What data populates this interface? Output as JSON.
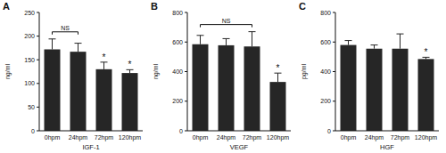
{
  "chart_data": [
    {
      "type": "bar",
      "title": "A",
      "x_label": "IGF-1",
      "y_label": "ng/ml",
      "categories": [
        "0hpm",
        "24hpm",
        "72hpm",
        "120hpm"
      ],
      "values": [
        172,
        167,
        130,
        122
      ],
      "errors": [
        22,
        18,
        15,
        7
      ],
      "color": "#262626",
      "ylim": [
        0,
        250
      ],
      "yticks": [
        0,
        50,
        100,
        150,
        200,
        250
      ],
      "grid": false,
      "annotations": [
        {
          "text": "NS",
          "from": 0,
          "to": 1
        },
        {
          "text": "*",
          "from": 2,
          "to": 2
        },
        {
          "text": "*",
          "from": 3,
          "to": 3
        }
      ]
    },
    {
      "type": "bar",
      "title": "B",
      "x_label": "VEGF",
      "y_label": "ng/ml",
      "categories": [
        "0hpm",
        "24hpm",
        "72hpm",
        "120hpm"
      ],
      "values": [
        585,
        578,
        570,
        330
      ],
      "errors": [
        60,
        45,
        100,
        60
      ],
      "color": "#262626",
      "ylim": [
        0,
        800
      ],
      "yticks": [
        0,
        200,
        400,
        600,
        800
      ],
      "grid": false,
      "annotations": [
        {
          "text": "NS",
          "from": 0,
          "to": 2
        },
        {
          "text": "*",
          "from": 3,
          "to": 3
        }
      ]
    },
    {
      "type": "bar",
      "title": "C",
      "x_label": "HGF",
      "y_label": "pg/ml",
      "categories": [
        "0hpm",
        "24hpm",
        "72hpm",
        "120hpm"
      ],
      "values": [
        580,
        555,
        555,
        485
      ],
      "errors": [
        30,
        25,
        100,
        12
      ],
      "color": "#262626",
      "ylim": [
        0,
        800
      ],
      "yticks": [
        0,
        200,
        400,
        600,
        800
      ],
      "grid": false,
      "annotations": [
        {
          "text": "*",
          "from": 3,
          "to": 3
        }
      ]
    }
  ]
}
